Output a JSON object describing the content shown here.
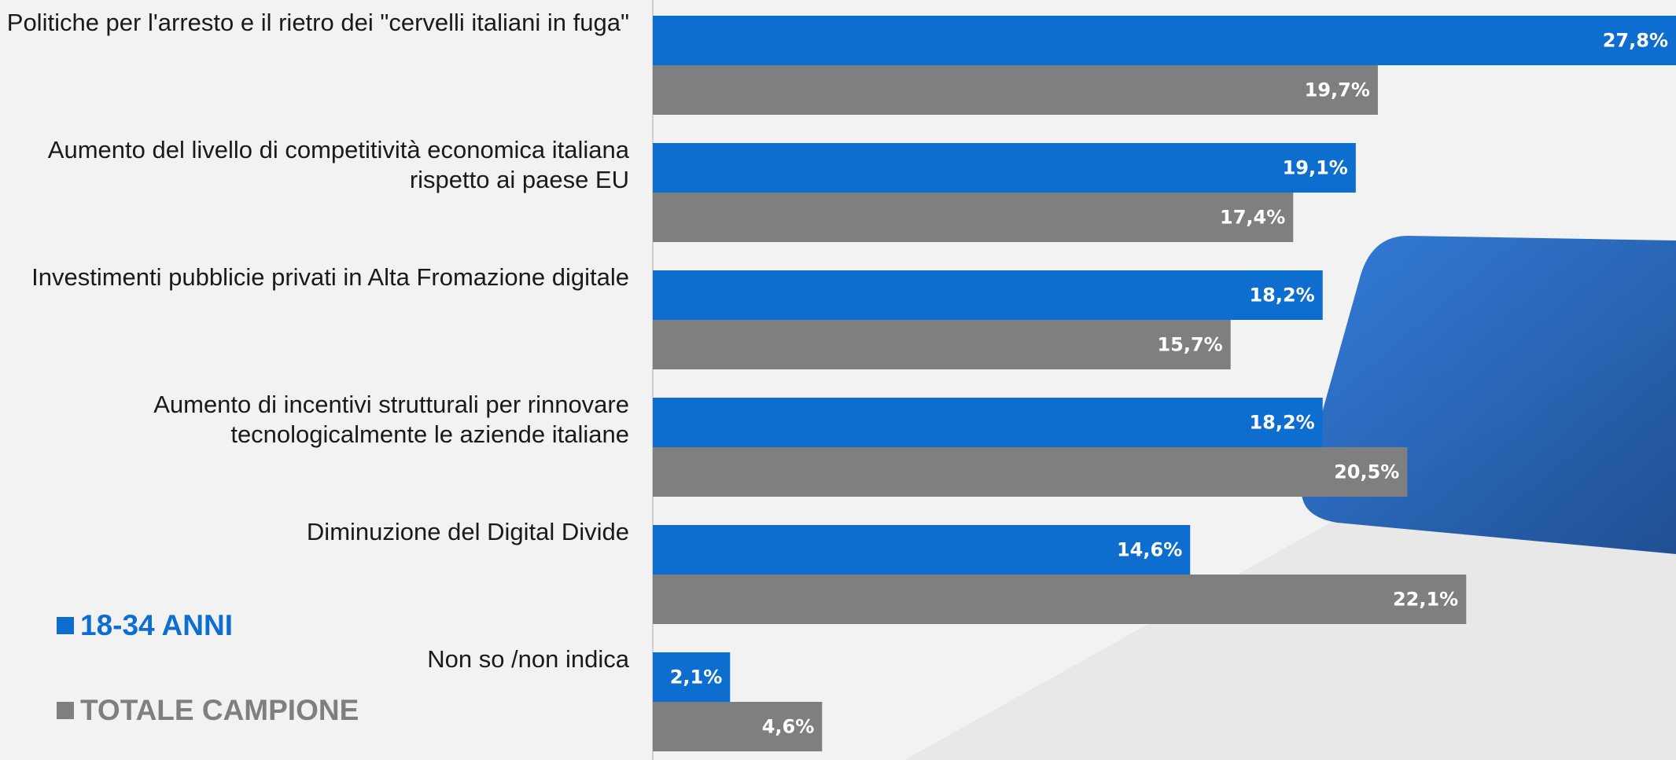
{
  "chart_data": {
    "type": "barh",
    "categories": [
      "Politiche per l'arresto e il rietro dei \"cervelli italiani in fuga\"",
      "Aumento del livello di competitività economica italiana rispetto ai paese EU",
      "Investimenti pubblicie privati in Alta Fromazione digitale",
      "Aumento di incentivi strutturali per rinnovare tecnologicalmente le aziende italiane",
      "Diminuzione del Digital Divide",
      "Non so /non indica"
    ],
    "series": [
      {
        "name": "18-34 ANNI",
        "color": "#0e6ecf",
        "values": [
          27.8,
          19.1,
          18.2,
          18.2,
          14.6,
          2.1
        ],
        "value_labels": [
          "27,8%",
          "19,1%",
          "18,2%",
          "18,2%",
          "14,6%",
          "2,1%"
        ]
      },
      {
        "name": "TOTALE CAMPIONE",
        "color": "#7f7f7f",
        "values": [
          19.7,
          17.4,
          15.7,
          20.5,
          22.1,
          4.6
        ],
        "value_labels": [
          "19,7%",
          "17,4%",
          "15,7%",
          "20,5%",
          "22,1%",
          "4,6%"
        ]
      }
    ],
    "xlim": [
      0,
      27.8
    ]
  }
}
